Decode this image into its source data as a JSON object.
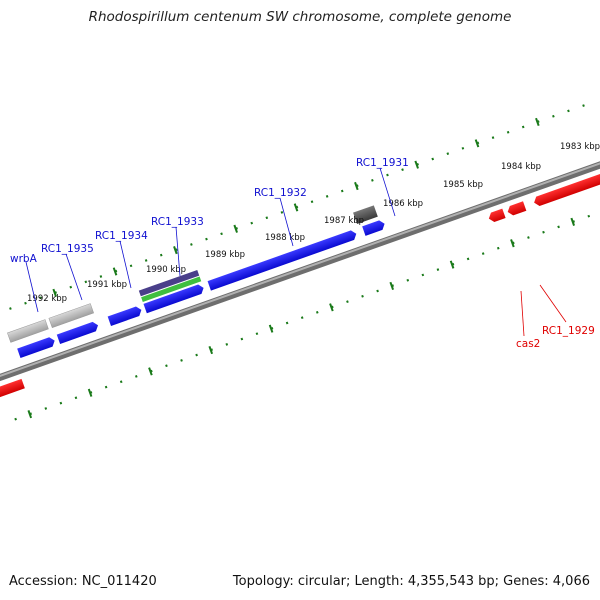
{
  "title": "Rhodospirillum centenum SW chromosome, complete genome",
  "footer": {
    "accession": "Accession: NC_011420",
    "summary": "Topology: circular; Length: 4,355,543 bp; Genes: 4,066"
  },
  "ticks": [
    {
      "label": "1983 kbp"
    },
    {
      "label": "1984 kbp"
    },
    {
      "label": "1985 kbp"
    },
    {
      "label": "1986 kbp"
    },
    {
      "label": "1987 kbp"
    },
    {
      "label": "1988 kbp"
    },
    {
      "label": "1989 kbp"
    },
    {
      "label": "1990 kbp"
    },
    {
      "label": "1991 kbp"
    },
    {
      "label": "1992 kbp"
    }
  ],
  "gene_labels": [
    {
      "name": "wrbA",
      "strand": "forward"
    },
    {
      "name": "RC1_1935",
      "strand": "forward"
    },
    {
      "name": "RC1_1934",
      "strand": "forward"
    },
    {
      "name": "RC1_1933",
      "strand": "forward"
    },
    {
      "name": "RC1_1932",
      "strand": "forward"
    },
    {
      "name": "RC1_1931",
      "strand": "forward"
    },
    {
      "name": "cas2",
      "strand": "reverse"
    },
    {
      "name": "RC1_1929",
      "strand": "reverse"
    }
  ],
  "colors": {
    "forward_gene": "#1a1ae6",
    "reverse_gene": "#e61a1a",
    "pseudo_gene": "#b8b8b8",
    "dark_feature": "#555555",
    "rna_purple": "#4a3f8a",
    "rna_green": "#3fbf3f",
    "tick_green": "#1a7a1a",
    "backbone": "#707070"
  }
}
